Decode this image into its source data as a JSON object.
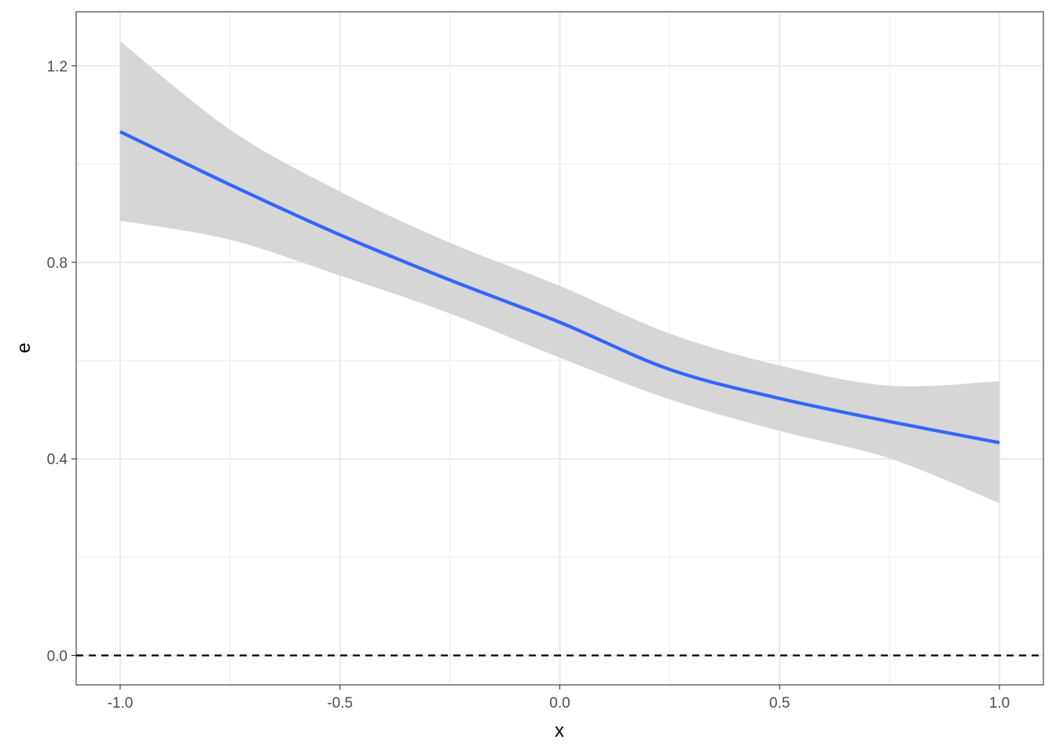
{
  "chart_data": {
    "type": "line",
    "xlabel": "x",
    "ylabel": "e",
    "xlim": [
      -1.1,
      1.1
    ],
    "ylim": [
      -0.06,
      1.31
    ],
    "x_ticks": [
      -1.0,
      -0.5,
      0.0,
      0.5,
      1.0
    ],
    "x_tick_labels": [
      "-1.0",
      "-0.5",
      "0.0",
      "0.5",
      "1.0"
    ],
    "y_ticks": [
      0.0,
      0.4,
      0.8,
      1.2
    ],
    "y_tick_labels": [
      "0.0",
      "0.4",
      "0.8",
      "1.2"
    ],
    "grid": true,
    "reference_line": {
      "y": 0.0,
      "style": "dashed",
      "color": "#000000"
    },
    "series": [
      {
        "color": "#3366ff",
        "x": [
          -1.0,
          -0.75,
          -0.5,
          -0.25,
          0.0,
          0.25,
          0.5,
          0.75,
          1.0
        ],
        "y": [
          1.066,
          0.958,
          0.856,
          0.764,
          0.678,
          0.582,
          0.523,
          0.476,
          0.433
        ],
        "ci_lower": [
          0.885,
          0.846,
          0.773,
          0.696,
          0.606,
          0.521,
          0.457,
          0.401,
          0.31
        ],
        "ci_upper": [
          1.25,
          1.07,
          0.944,
          0.84,
          0.752,
          0.655,
          0.59,
          0.549,
          0.558
        ],
        "ci_color": "#d6d6d6"
      }
    ]
  }
}
